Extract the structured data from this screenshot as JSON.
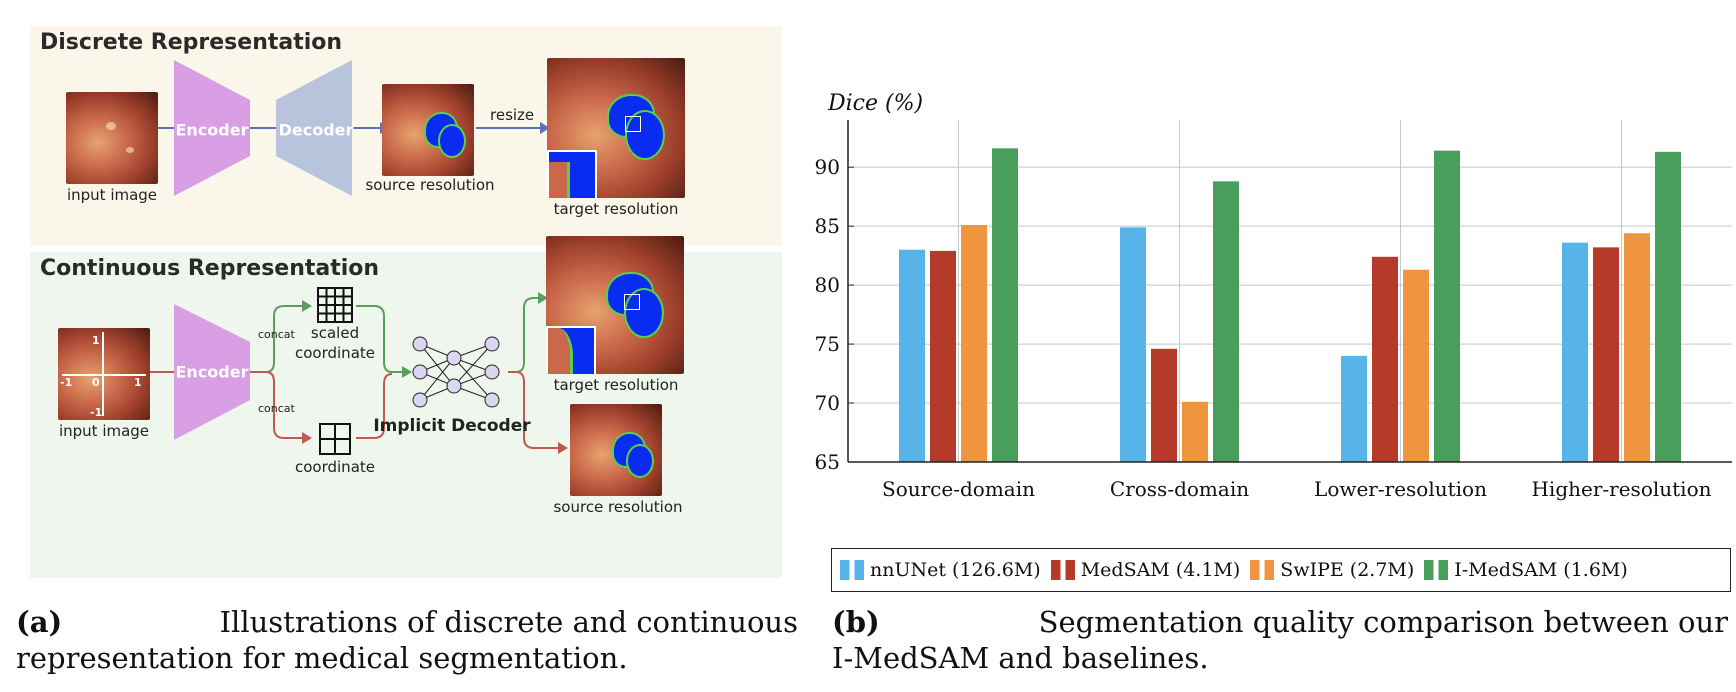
{
  "panel_a": {
    "discrete": {
      "title": "Discrete Representation",
      "encoder_label": "Encoder",
      "decoder_label": "Decoder",
      "input_caption": "input image",
      "source_caption": "source resolution",
      "resize_label": "resize",
      "target_caption": "target resolution"
    },
    "continuous": {
      "title": "Continuous Representation",
      "encoder_label": "Encoder",
      "input_caption": "input image",
      "concat_top": "concat",
      "concat_bottom": "concat",
      "scaled_label": "scaled",
      "coordinate_label": "coordinate",
      "coordinate_label_bottom": "coordinate",
      "implicit_decoder": "Implicit Decoder",
      "target_caption": "target resolution",
      "source_caption": "source resolution",
      "axis_ticks": [
        "1",
        "1",
        "-1",
        "0",
        "-1"
      ]
    },
    "colors": {
      "encoder": "#d89fe4",
      "decoder": "#b7c4dc",
      "arrow_blue": "#5a72b8",
      "arrow_green": "#5aa05a",
      "arrow_red": "#c05a50",
      "mask": "#0a2cf0",
      "mask_edge": "#58d04a"
    }
  },
  "chart_data": {
    "type": "bar",
    "ylabel": "Dice (%)",
    "ylim": [
      65,
      94
    ],
    "yticks": [
      65,
      70,
      75,
      80,
      85,
      90
    ],
    "categories": [
      "Source-domain",
      "Cross-domain",
      "Lower-resolution",
      "Higher-resolution"
    ],
    "series": [
      {
        "name": "nnUNet (126.6M)",
        "color": "#56b4e9",
        "values": [
          83.0,
          84.9,
          74.0,
          83.6
        ]
      },
      {
        "name": "MedSAM (4.1M)",
        "color": "#b63a2a",
        "values": [
          82.9,
          74.6,
          82.4,
          83.2
        ]
      },
      {
        "name": "SwIPE (2.7M)",
        "color": "#f0953f",
        "values": [
          85.1,
          70.1,
          81.3,
          84.4
        ]
      },
      {
        "name": "I-MedSAM (1.6M)",
        "color": "#4a9e5c",
        "values": [
          91.6,
          88.8,
          91.4,
          91.3
        ]
      }
    ],
    "grid": true,
    "legend_position": "bottom"
  },
  "captions": {
    "a_tag": "(a)",
    "a_line1": "Illustrations of discrete and continuous",
    "a_line2": "representation for medical segmentation.",
    "b_tag": "(b)",
    "b_line1": "Segmentation quality comparison between our",
    "b_line2": "I-MedSAM and baselines."
  }
}
